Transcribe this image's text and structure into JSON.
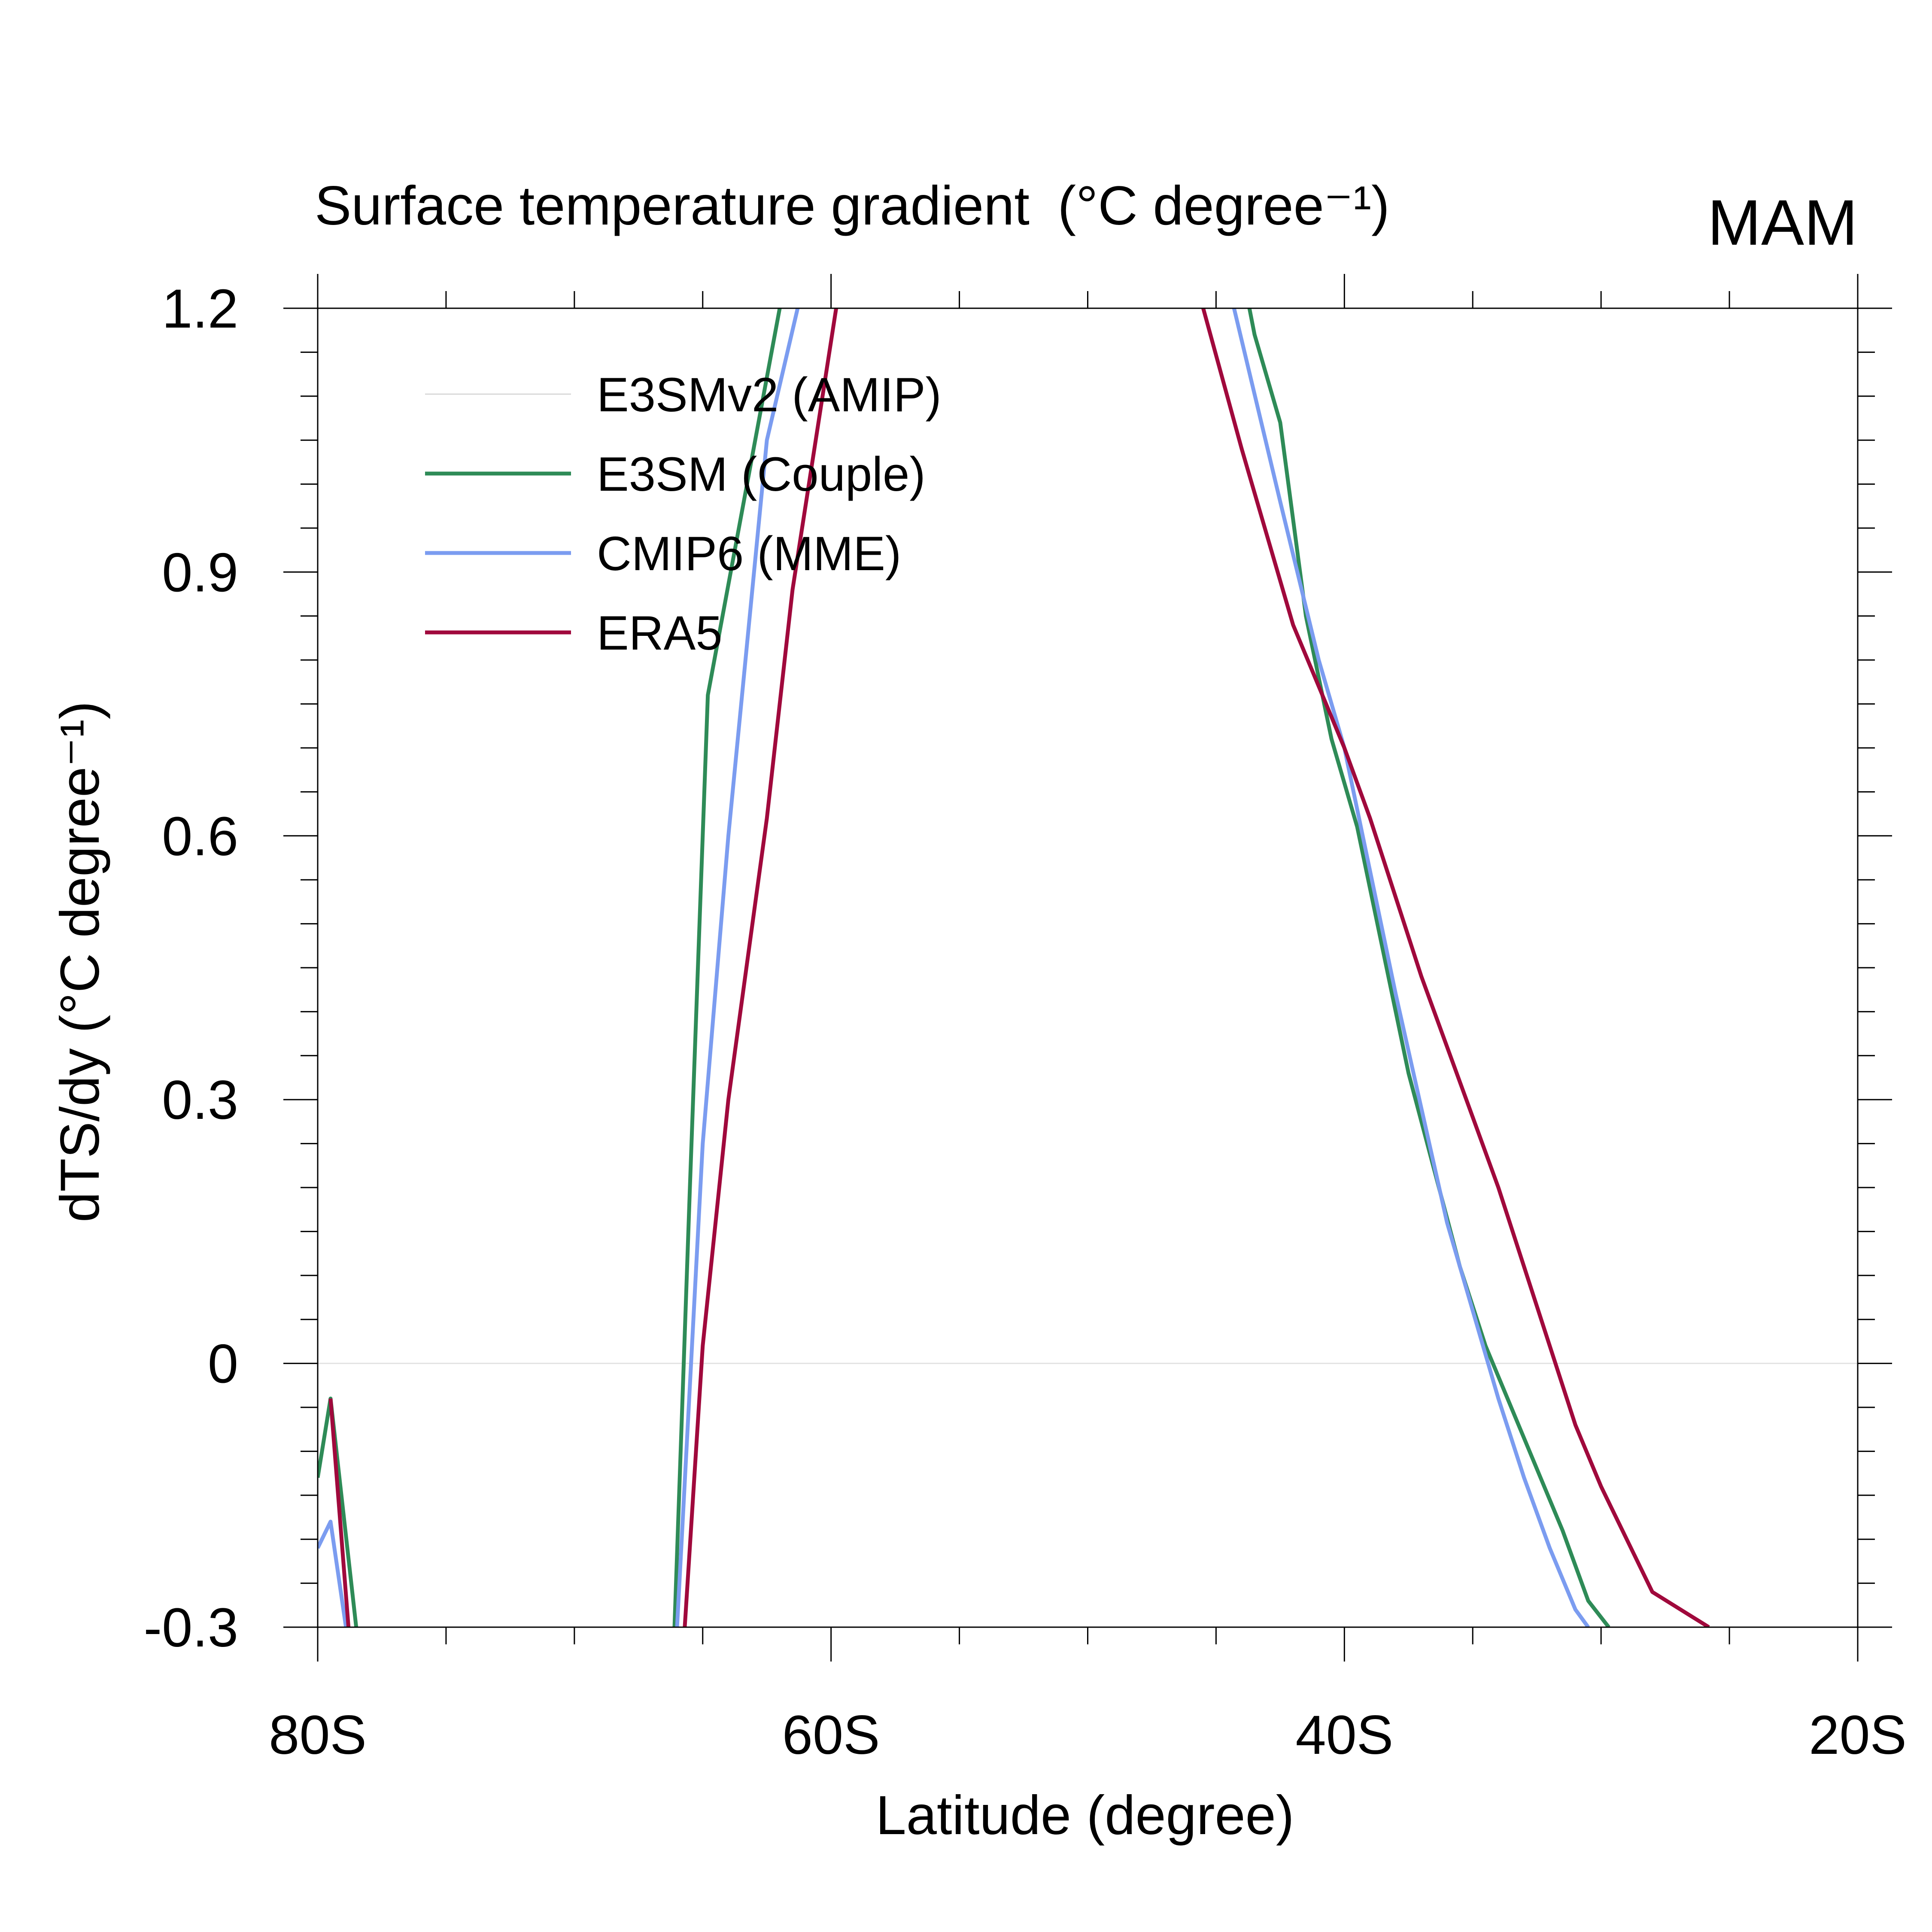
{
  "chart_data": {
    "type": "line",
    "title": "Surface temperature gradient",
    "title_unit": "(°C degree⁻¹)",
    "season": "MAM",
    "xlabel": "Latitude (degree)",
    "ylabel": "dTS/dy (°C degree⁻¹)",
    "xlim": [
      -80,
      -20
    ],
    "ylim": [
      -0.3,
      1.2
    ],
    "x_ticks": [
      -80,
      -60,
      -40,
      -20
    ],
    "x_tick_labels": [
      "80S",
      "60S",
      "40S",
      "20S"
    ],
    "y_ticks": [
      -0.3,
      0,
      0.3,
      0.6,
      0.9,
      1.2
    ],
    "y_tick_labels": [
      "-0.3",
      "0",
      "0.3",
      "0.6",
      "0.9",
      "1.2"
    ],
    "zero_line": true,
    "legend_position": "top-left",
    "series": [
      {
        "name": "E3SMv2 (AMIP)",
        "color": "#d8d8d8",
        "points": []
      },
      {
        "name": "E3SM (Couple)",
        "color": "#2e8b57",
        "points": [
          [
            -80.0,
            -0.13
          ],
          [
            -79.5,
            -0.04
          ],
          [
            -78.5,
            -0.3
          ],
          [
            -66.1,
            -0.3
          ],
          [
            -65.5,
            0.2
          ],
          [
            -64.8,
            0.76
          ],
          [
            -62.0,
            1.2
          ],
          [
            -43.7,
            1.2
          ],
          [
            -43.5,
            1.17
          ],
          [
            -42.5,
            1.07
          ],
          [
            -41.5,
            0.85
          ],
          [
            -40.5,
            0.71
          ],
          [
            -39.5,
            0.61
          ],
          [
            -38.5,
            0.47
          ],
          [
            -37.5,
            0.33
          ],
          [
            -36.5,
            0.22
          ],
          [
            -35.5,
            0.11
          ],
          [
            -34.5,
            0.02
          ],
          [
            -33.5,
            -0.05
          ],
          [
            -32.5,
            -0.12
          ],
          [
            -31.5,
            -0.19
          ],
          [
            -30.5,
            -0.27
          ],
          [
            -29.7,
            -0.3
          ]
        ]
      },
      {
        "name": "CMIP6 (MME)",
        "color": "#7b9cf0",
        "points": [
          [
            -80.0,
            -0.21
          ],
          [
            -79.5,
            -0.18
          ],
          [
            -78.9,
            -0.3
          ],
          [
            -66.0,
            -0.3
          ],
          [
            -65.0,
            0.25
          ],
          [
            -64.0,
            0.6
          ],
          [
            -62.5,
            1.05
          ],
          [
            -61.3,
            1.2
          ],
          [
            -44.3,
            1.2
          ],
          [
            -42.5,
            0.98
          ],
          [
            -41.0,
            0.8
          ],
          [
            -40.0,
            0.7
          ],
          [
            -39.0,
            0.56
          ],
          [
            -38.0,
            0.42
          ],
          [
            -37.0,
            0.29
          ],
          [
            -36.0,
            0.16
          ],
          [
            -35.0,
            0.06
          ],
          [
            -34.0,
            -0.04
          ],
          [
            -33.0,
            -0.13
          ],
          [
            -32.0,
            -0.21
          ],
          [
            -31.0,
            -0.28
          ],
          [
            -30.5,
            -0.3
          ]
        ]
      },
      {
        "name": "ERA5",
        "color": "#a0093c",
        "points": [
          [
            -79.5,
            -0.04
          ],
          [
            -78.8,
            -0.3
          ],
          [
            -65.7,
            -0.3
          ],
          [
            -65.0,
            0.02
          ],
          [
            -64.0,
            0.3
          ],
          [
            -62.5,
            0.62
          ],
          [
            -61.5,
            0.88
          ],
          [
            -59.8,
            1.2
          ],
          [
            -45.5,
            1.2
          ],
          [
            -44.0,
            1.04
          ],
          [
            -43.0,
            0.94
          ],
          [
            -42.0,
            0.84
          ],
          [
            -41.0,
            0.77
          ],
          [
            -40.0,
            0.7
          ],
          [
            -39.0,
            0.62
          ],
          [
            -38.0,
            0.53
          ],
          [
            -37.0,
            0.44
          ],
          [
            -36.0,
            0.36
          ],
          [
            -35.0,
            0.28
          ],
          [
            -34.0,
            0.2
          ],
          [
            -33.0,
            0.11
          ],
          [
            -32.0,
            0.02
          ],
          [
            -31.0,
            -0.07
          ],
          [
            -30.0,
            -0.14
          ],
          [
            -29.0,
            -0.2
          ],
          [
            -28.0,
            -0.26
          ],
          [
            -25.8,
            -0.3
          ]
        ]
      }
    ]
  }
}
